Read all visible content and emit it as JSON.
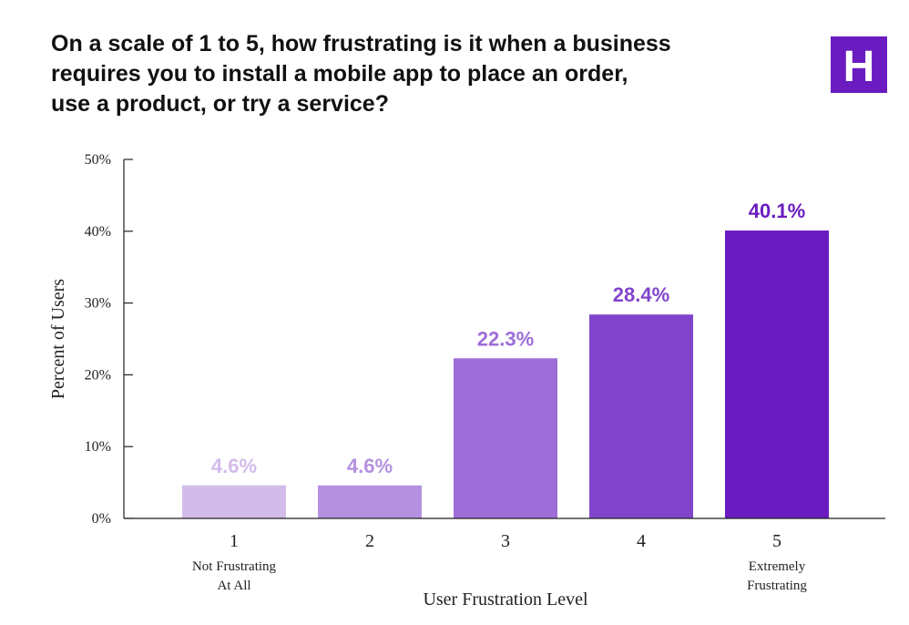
{
  "chart_data": {
    "type": "bar",
    "title_lines": [
      "On a scale of 1 to 5, how frustrating is it when a business",
      "requires you to install a mobile app to place an order,",
      "use a product, or try a service?"
    ],
    "categories": [
      "1",
      "2",
      "3",
      "4",
      "5"
    ],
    "category_sublabels": [
      [
        "Not Frustrating",
        "At All"
      ],
      [],
      [],
      [],
      [
        "Extremely",
        "Frustrating"
      ]
    ],
    "values": [
      4.6,
      4.6,
      22.3,
      28.4,
      40.1
    ],
    "data_labels": [
      "4.6%",
      "4.6%",
      "22.3%",
      "28.4%",
      "40.1%"
    ],
    "bar_colors": [
      "#d3bbea",
      "#b490e0",
      "#9d6dd8",
      "#8145cc",
      "#6a1cc0"
    ],
    "label_colors": [
      "#d3bbea",
      "#b490e0",
      "#9d6dd8",
      "#8145cc",
      "#6a1cc0"
    ],
    "ylim": [
      0,
      50
    ],
    "yticks": [
      0,
      10,
      20,
      30,
      40,
      50
    ],
    "ytick_labels": [
      "0%",
      "10%",
      "20%",
      "30%",
      "40%",
      "50%"
    ],
    "xlabel": "User Frustration Level",
    "ylabel": "Percent of Users",
    "grid": false
  },
  "logo": {
    "letter": "H",
    "color": "#6a1cc0"
  }
}
